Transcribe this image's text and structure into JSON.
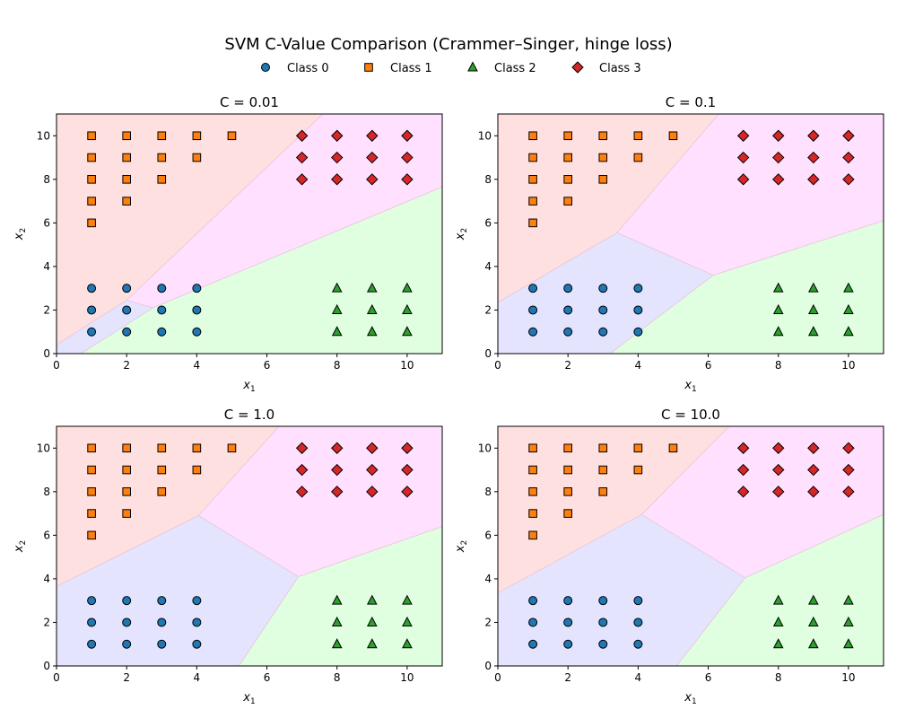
{
  "figure": {
    "title": "SVM C-Value Comparison  (Crammer–Singer, hinge loss)"
  },
  "legend": {
    "placement": "top-center",
    "items": [
      {
        "label": "Class 0",
        "marker": "circle",
        "color": "#1f77b4"
      },
      {
        "label": "Class 1",
        "marker": "square",
        "color": "#ff7f0e"
      },
      {
        "label": "Class 2",
        "marker": "triangle",
        "color": "#2ca02c"
      },
      {
        "label": "Class 3",
        "marker": "diamond",
        "color": "#d62728"
      }
    ]
  },
  "chart_data": [
    {
      "type": "scatter",
      "title": "C = 0.01",
      "xlabel": "x1",
      "ylabel": "x2",
      "xlim": [
        0,
        11
      ],
      "ylim": [
        0,
        11
      ],
      "xticks": [
        0,
        2,
        4,
        6,
        8,
        10
      ],
      "yticks": [
        0,
        2,
        4,
        6,
        8,
        10
      ],
      "regions": [
        {
          "class": "Class 1",
          "color": "#ffe0e0",
          "polygon": [
            [
              0,
              11
            ],
            [
              7.6,
              11
            ],
            [
              2,
              2.45
            ],
            [
              0,
              0.4
            ]
          ]
        },
        {
          "class": "Class 0",
          "color": "#e4e4ff",
          "polygon": [
            [
              0,
              0.4
            ],
            [
              2,
              2.45
            ],
            [
              2.75,
              2.1
            ],
            [
              0.7,
              0
            ],
            [
              0,
              0
            ]
          ]
        },
        {
          "class": "Class 3",
          "color": "#ffe0ff",
          "polygon": [
            [
              7.6,
              11
            ],
            [
              11,
              11
            ],
            [
              11,
              7.65
            ],
            [
              2.75,
              2.1
            ],
            [
              2,
              2.45
            ]
          ]
        },
        {
          "class": "Class 2",
          "color": "#e0ffe0",
          "polygon": [
            [
              0.7,
              0
            ],
            [
              11,
              0
            ],
            [
              11,
              7.65
            ],
            [
              2.75,
              2.1
            ]
          ]
        }
      ]
    },
    {
      "type": "scatter",
      "title": "C = 0.1",
      "xlabel": "x1",
      "ylabel": "x2",
      "xlim": [
        0,
        11
      ],
      "ylim": [
        0,
        11
      ],
      "xticks": [
        0,
        2,
        4,
        6,
        8,
        10
      ],
      "yticks": [
        0,
        2,
        4,
        6,
        8,
        10
      ],
      "regions": [
        {
          "class": "Class 1",
          "color": "#ffe0e0",
          "polygon": [
            [
              0,
              11
            ],
            [
              6.3,
              11
            ],
            [
              3.4,
              5.55
            ],
            [
              0,
              2.35
            ]
          ]
        },
        {
          "class": "Class 0",
          "color": "#e4e4ff",
          "polygon": [
            [
              0,
              2.35
            ],
            [
              3.4,
              5.55
            ],
            [
              6.15,
              3.6
            ],
            [
              3.2,
              0
            ],
            [
              0,
              0
            ]
          ]
        },
        {
          "class": "Class 3",
          "color": "#ffe0ff",
          "polygon": [
            [
              6.3,
              11
            ],
            [
              11,
              11
            ],
            [
              11,
              6.1
            ],
            [
              6.15,
              3.6
            ],
            [
              3.4,
              5.55
            ]
          ]
        },
        {
          "class": "Class 2",
          "color": "#e0ffe0",
          "polygon": [
            [
              3.2,
              0
            ],
            [
              11,
              0
            ],
            [
              11,
              6.1
            ],
            [
              6.15,
              3.6
            ]
          ]
        }
      ]
    },
    {
      "type": "scatter",
      "title": "C = 1.0",
      "xlabel": "x1",
      "ylabel": "x2",
      "xlim": [
        0,
        11
      ],
      "ylim": [
        0,
        11
      ],
      "xticks": [
        0,
        2,
        4,
        6,
        8,
        10
      ],
      "yticks": [
        0,
        2,
        4,
        6,
        8,
        10
      ],
      "regions": [
        {
          "class": "Class 1",
          "color": "#ffe0e0",
          "polygon": [
            [
              0,
              11
            ],
            [
              6.35,
              11
            ],
            [
              4.05,
              6.9
            ],
            [
              0,
              3.65
            ]
          ]
        },
        {
          "class": "Class 0",
          "color": "#e4e4ff",
          "polygon": [
            [
              0,
              3.65
            ],
            [
              4.05,
              6.9
            ],
            [
              6.9,
              4.1
            ],
            [
              5.2,
              0
            ],
            [
              0,
              0
            ]
          ]
        },
        {
          "class": "Class 3",
          "color": "#ffe0ff",
          "polygon": [
            [
              6.35,
              11
            ],
            [
              11,
              11
            ],
            [
              11,
              6.4
            ],
            [
              6.9,
              4.1
            ],
            [
              4.05,
              6.9
            ]
          ]
        },
        {
          "class": "Class 2",
          "color": "#e0ffe0",
          "polygon": [
            [
              5.2,
              0
            ],
            [
              11,
              0
            ],
            [
              11,
              6.4
            ],
            [
              6.9,
              4.1
            ]
          ]
        }
      ]
    },
    {
      "type": "scatter",
      "title": "C = 10.0",
      "xlabel": "x1",
      "ylabel": "x2",
      "xlim": [
        0,
        11
      ],
      "ylim": [
        0,
        11
      ],
      "xticks": [
        0,
        2,
        4,
        6,
        8,
        10
      ],
      "yticks": [
        0,
        2,
        4,
        6,
        8,
        10
      ],
      "regions": [
        {
          "class": "Class 1",
          "color": "#ffe0e0",
          "polygon": [
            [
              0,
              11
            ],
            [
              6.6,
              11
            ],
            [
              4.1,
              6.95
            ],
            [
              0,
              3.35
            ]
          ]
        },
        {
          "class": "Class 0",
          "color": "#e4e4ff",
          "polygon": [
            [
              0,
              3.35
            ],
            [
              4.1,
              6.95
            ],
            [
              7.05,
              4.05
            ],
            [
              5.1,
              0
            ],
            [
              0,
              0
            ]
          ]
        },
        {
          "class": "Class 3",
          "color": "#ffe0ff",
          "polygon": [
            [
              6.6,
              11
            ],
            [
              11,
              11
            ],
            [
              11,
              6.95
            ],
            [
              7.05,
              4.05
            ],
            [
              4.1,
              6.95
            ]
          ]
        },
        {
          "class": "Class 2",
          "color": "#e0ffe0",
          "polygon": [
            [
              5.1,
              0
            ],
            [
              11,
              0
            ],
            [
              11,
              6.95
            ],
            [
              7.05,
              4.05
            ]
          ]
        }
      ]
    }
  ],
  "points": [
    {
      "class": "Class 0",
      "marker": "circle",
      "color": "#1f77b4",
      "xy": [
        [
          1,
          1
        ],
        [
          1,
          2
        ],
        [
          1,
          3
        ],
        [
          2,
          1
        ],
        [
          2,
          2
        ],
        [
          2,
          3
        ],
        [
          3,
          1
        ],
        [
          3,
          2
        ],
        [
          3,
          3
        ],
        [
          4,
          1
        ],
        [
          4,
          2
        ],
        [
          4,
          3
        ]
      ]
    },
    {
      "class": "Class 1",
      "marker": "square",
      "color": "#ff7f0e",
      "xy": [
        [
          1,
          6
        ],
        [
          1,
          7
        ],
        [
          1,
          8
        ],
        [
          1,
          9
        ],
        [
          1,
          10
        ],
        [
          2,
          7
        ],
        [
          2,
          8
        ],
        [
          2,
          9
        ],
        [
          2,
          10
        ],
        [
          3,
          8
        ],
        [
          3,
          9
        ],
        [
          3,
          10
        ],
        [
          4,
          9
        ],
        [
          4,
          10
        ],
        [
          5,
          10
        ]
      ]
    },
    {
      "class": "Class 2",
      "marker": "triangle",
      "color": "#2ca02c",
      "xy": [
        [
          8,
          1
        ],
        [
          8,
          2
        ],
        [
          8,
          3
        ],
        [
          9,
          1
        ],
        [
          9,
          2
        ],
        [
          9,
          3
        ],
        [
          10,
          1
        ],
        [
          10,
          2
        ],
        [
          10,
          3
        ]
      ]
    },
    {
      "class": "Class 3",
      "marker": "diamond",
      "color": "#d62728",
      "xy": [
        [
          7,
          8
        ],
        [
          7,
          9
        ],
        [
          7,
          10
        ],
        [
          8,
          8
        ],
        [
          8,
          9
        ],
        [
          8,
          10
        ],
        [
          9,
          8
        ],
        [
          9,
          9
        ],
        [
          9,
          10
        ],
        [
          10,
          8
        ],
        [
          10,
          9
        ],
        [
          10,
          10
        ]
      ]
    }
  ]
}
